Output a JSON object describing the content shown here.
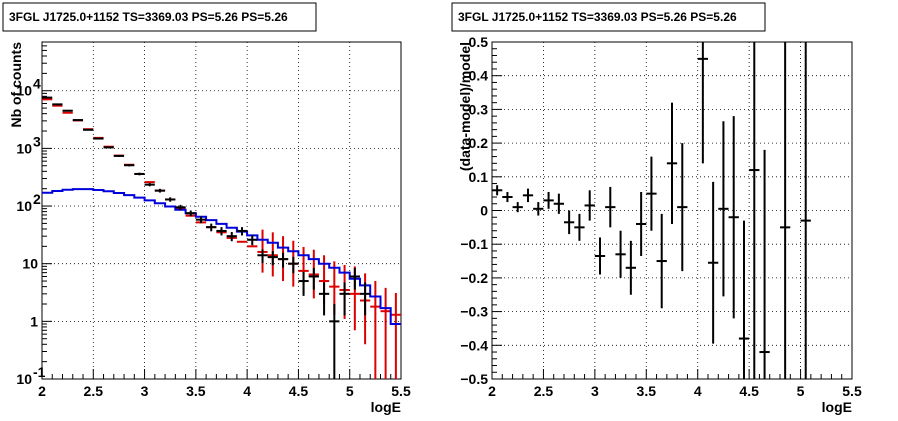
{
  "chart_data": [
    {
      "type": "scatter",
      "title": "3FGL J1725.0+1152 TS=3369.03 PS=5.26 PS=5.26",
      "xlabel": "logE",
      "ylabel": "Nb of counts",
      "xlim": [
        2,
        5.5
      ],
      "ylim": [
        0.1,
        70000
      ],
      "yscale": "log",
      "grid": true,
      "x_ticks": [
        "2",
        "2.5",
        "3",
        "3.5",
        "4",
        "4.5",
        "5",
        "5.5"
      ],
      "y_ticks": [
        {
          "value": 0.1,
          "label": "10",
          "exp": "-1"
        },
        {
          "value": 1,
          "label": "1",
          "exp": ""
        },
        {
          "value": 10,
          "label": "10",
          "exp": ""
        },
        {
          "value": 100,
          "label": "10",
          "exp": "2"
        },
        {
          "value": 1000,
          "label": "10",
          "exp": "3"
        },
        {
          "value": 10000,
          "label": "10",
          "exp": "4"
        }
      ],
      "colors": {
        "data": "#000000",
        "total_model": "#dd0000",
        "source_model": "#0000dd"
      },
      "x": [
        2.05,
        2.15,
        2.25,
        2.35,
        2.45,
        2.55,
        2.65,
        2.75,
        2.85,
        2.95,
        3.05,
        3.15,
        3.25,
        3.35,
        3.45,
        3.55,
        3.65,
        3.75,
        3.85,
        3.95,
        4.05,
        4.15,
        4.25,
        4.35,
        4.45,
        4.55,
        4.65,
        4.75,
        4.85,
        4.95,
        5.05,
        5.15,
        5.25,
        5.35,
        5.45
      ],
      "series": [
        {
          "role": "data",
          "values": [
            7600,
            5800,
            4500,
            3100,
            2100,
            1480,
            1040,
            740,
            510,
            360,
            235,
            185,
            130,
            95,
            75,
            58,
            43,
            37,
            30,
            37,
            26,
            14,
            13,
            12,
            10,
            5,
            6,
            3,
            1,
            3,
            6,
            3,
            null,
            null,
            null
          ],
          "xerr": 0.05
        },
        {
          "role": "total_model",
          "values": [
            7100,
            5500,
            4150,
            3050,
            2150,
            1520,
            1070,
            750,
            520,
            360,
            260,
            185,
            130,
            92,
            68,
            52,
            43,
            35,
            28,
            24,
            20,
            16,
            14,
            12,
            10,
            7.5,
            6.5,
            5,
            4,
            3.5,
            3,
            2.3,
            1.8,
            1.5,
            1.3
          ],
          "yerr_low": [
            null,
            null,
            null,
            null,
            null,
            null,
            null,
            null,
            null,
            null,
            null,
            null,
            null,
            null,
            null,
            null,
            null,
            null,
            null,
            null,
            null,
            9,
            8,
            7,
            6,
            4.5,
            4,
            3,
            2.7,
            2.4,
            2.3,
            1.9,
            1.7,
            1.45,
            1.28
          ],
          "yerr_high": [
            null,
            null,
            null,
            null,
            null,
            null,
            null,
            null,
            null,
            null,
            null,
            null,
            null,
            null,
            null,
            null,
            null,
            null,
            null,
            null,
            null,
            23,
            21,
            18,
            15,
            12,
            11,
            9,
            7,
            6,
            6,
            4.5,
            3.2,
            2.3,
            1.8
          ]
        },
        {
          "role": "source_model",
          "values": [
            170,
            182,
            192,
            197,
            197,
            190,
            180,
            168,
            155,
            140,
            125,
            112,
            98,
            86,
            75,
            65,
            57,
            49,
            42,
            36,
            31,
            26,
            23,
            19,
            16.5,
            14,
            12,
            10,
            8.5,
            7,
            5.5,
            4.2,
            2.7,
            1.7,
            0.9
          ]
        }
      ]
    },
    {
      "type": "scatter",
      "title": "3FGL J1725.0+1152 TS=3369.03 PS=5.26 PS=5.26",
      "xlabel": "logE",
      "ylabel": "(data-model)/model",
      "xlim": [
        2,
        5.5
      ],
      "ylim": [
        -0.5,
        0.5
      ],
      "grid": true,
      "x_ticks": [
        "2",
        "2.5",
        "3",
        "3.5",
        "4",
        "4.5",
        "5",
        "5.5"
      ],
      "y_ticks": [
        "0.5",
        "0.4",
        "0.3",
        "0.2",
        "0.1",
        "0",
        "−0.1",
        "−0.2",
        "−0.3",
        "−0.4",
        "−0.5"
      ],
      "color": "#000000",
      "x": [
        2.05,
        2.15,
        2.25,
        2.35,
        2.45,
        2.55,
        2.65,
        2.75,
        2.85,
        2.95,
        3.05,
        3.15,
        3.25,
        3.35,
        3.45,
        3.55,
        3.65,
        3.75,
        3.85,
        4.05,
        4.15,
        4.25,
        4.35,
        4.45,
        4.55,
        4.65,
        4.85,
        5.05
      ],
      "values": [
        0.06,
        0.04,
        0.01,
        0.045,
        0.005,
        0.03,
        0.02,
        -0.035,
        -0.05,
        0.015,
        -0.135,
        0.01,
        -0.13,
        -0.17,
        -0.04,
        0.05,
        -0.15,
        0.14,
        0.01,
        0.45,
        -0.155,
        0.005,
        -0.02,
        -0.38,
        0.12,
        -0.42,
        -0.05,
        -0.03
      ],
      "yerr": [
        0.015,
        0.015,
        0.015,
        0.02,
        0.02,
        0.025,
        0.03,
        0.035,
        0.04,
        0.045,
        0.055,
        0.06,
        0.07,
        0.08,
        0.095,
        0.11,
        0.14,
        0.18,
        0.19,
        0.31,
        0.24,
        0.26,
        0.3,
        0.35,
        0.62,
        0.6,
        0.95,
        1.0
      ],
      "xerr": 0.05
    }
  ]
}
